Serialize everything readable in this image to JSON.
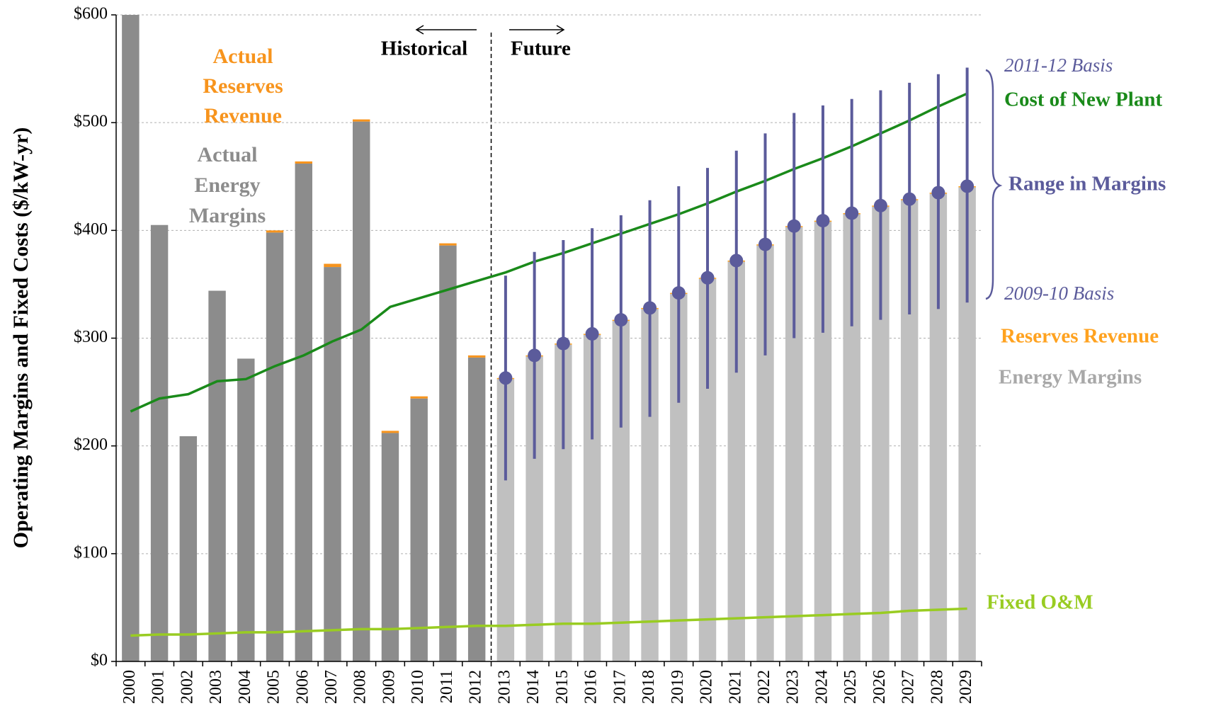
{
  "chart_data": {
    "type": "bar",
    "y_label": "Operating Margins and Fixed Costs ($/kW-yr)",
    "categories": [
      "2000",
      "2001",
      "2002",
      "2003",
      "2004",
      "2005",
      "2006",
      "2007",
      "2008",
      "2009",
      "2010",
      "2011",
      "2012",
      "2013",
      "2014",
      "2015",
      "2016",
      "2017",
      "2018",
      "2019",
      "2020",
      "2021",
      "2022",
      "2023",
      "2024",
      "2025",
      "2026",
      "2027",
      "2028",
      "2029"
    ],
    "ylim": [
      0,
      600
    ],
    "yticks": [
      {
        "value": 0,
        "label": "$0"
      },
      {
        "value": 100,
        "label": "$100"
      },
      {
        "value": 200,
        "label": "$200"
      },
      {
        "value": 300,
        "label": "$300"
      },
      {
        "value": 400,
        "label": "$400"
      },
      {
        "value": 500,
        "label": "$500"
      },
      {
        "value": 600,
        "label": "$600"
      }
    ],
    "grid": true,
    "series": [
      {
        "name": "Actual Energy Margins",
        "kind": "bar",
        "color": "#8c8c8c",
        "values": [
          600,
          405,
          209,
          344,
          281,
          398,
          462,
          366,
          501,
          212,
          244,
          386,
          282,
          null,
          null,
          null,
          null,
          null,
          null,
          null,
          null,
          null,
          null,
          null,
          null,
          null,
          null,
          null,
          null,
          null
        ]
      },
      {
        "name": "Actual Reserves Revenue",
        "kind": "bar",
        "color": "#f7941d",
        "values": [
          0,
          0,
          0,
          0,
          0,
          2,
          2,
          3,
          2,
          2,
          2,
          2,
          2,
          null,
          null,
          null,
          null,
          null,
          null,
          null,
          null,
          null,
          null,
          null,
          null,
          null,
          null,
          null,
          null,
          null
        ]
      },
      {
        "name": "Energy Margins",
        "kind": "bar",
        "color": "#c0c0c0",
        "values": [
          null,
          null,
          null,
          null,
          null,
          null,
          null,
          null,
          null,
          null,
          null,
          null,
          null,
          262,
          283,
          294,
          303,
          316,
          327,
          341,
          355,
          371,
          386,
          403,
          408,
          415,
          422,
          428,
          434,
          440
        ]
      },
      {
        "name": "Reserves Revenue",
        "kind": "bar",
        "color": "#ffa21f",
        "values": [
          null,
          null,
          null,
          null,
          null,
          null,
          null,
          null,
          null,
          null,
          null,
          null,
          null,
          1,
          1,
          1,
          1,
          1,
          1,
          1,
          1,
          1,
          1,
          1,
          1,
          1,
          1,
          1,
          1,
          1
        ]
      },
      {
        "name": "Cost of New Plant",
        "kind": "line",
        "color": "#1a8a1a",
        "values": [
          232,
          244,
          248,
          260,
          262,
          274,
          284,
          297,
          308,
          329,
          337,
          345,
          353,
          361,
          371,
          379,
          388,
          397,
          406,
          415,
          425,
          436,
          446,
          457,
          467,
          478,
          490,
          502,
          515,
          527
        ]
      },
      {
        "name": "Fixed O&M",
        "kind": "line",
        "color": "#99cc22",
        "values": [
          24,
          25,
          25,
          26,
          27,
          27,
          28,
          29,
          30,
          30,
          31,
          32,
          33,
          33,
          34,
          35,
          35,
          36,
          37,
          38,
          39,
          40,
          41,
          42,
          43,
          44,
          45,
          47,
          48,
          49
        ]
      }
    ],
    "range": {
      "name": "Range in Margins",
      "color": "#5b5b9b",
      "high_name": "2011-12 Basis",
      "low_name": "2009-10 Basis",
      "high": [
        null,
        null,
        null,
        null,
        null,
        null,
        null,
        null,
        null,
        null,
        null,
        null,
        null,
        358,
        380,
        391,
        402,
        414,
        428,
        441,
        458,
        474,
        490,
        509,
        516,
        522,
        530,
        537,
        545,
        551
      ],
      "low": [
        null,
        null,
        null,
        null,
        null,
        null,
        null,
        null,
        null,
        null,
        null,
        null,
        null,
        168,
        188,
        197,
        206,
        217,
        227,
        240,
        253,
        268,
        284,
        300,
        305,
        311,
        317,
        322,
        327,
        333
      ]
    },
    "annotations": {
      "historical": "Historical",
      "future": "Future"
    }
  }
}
